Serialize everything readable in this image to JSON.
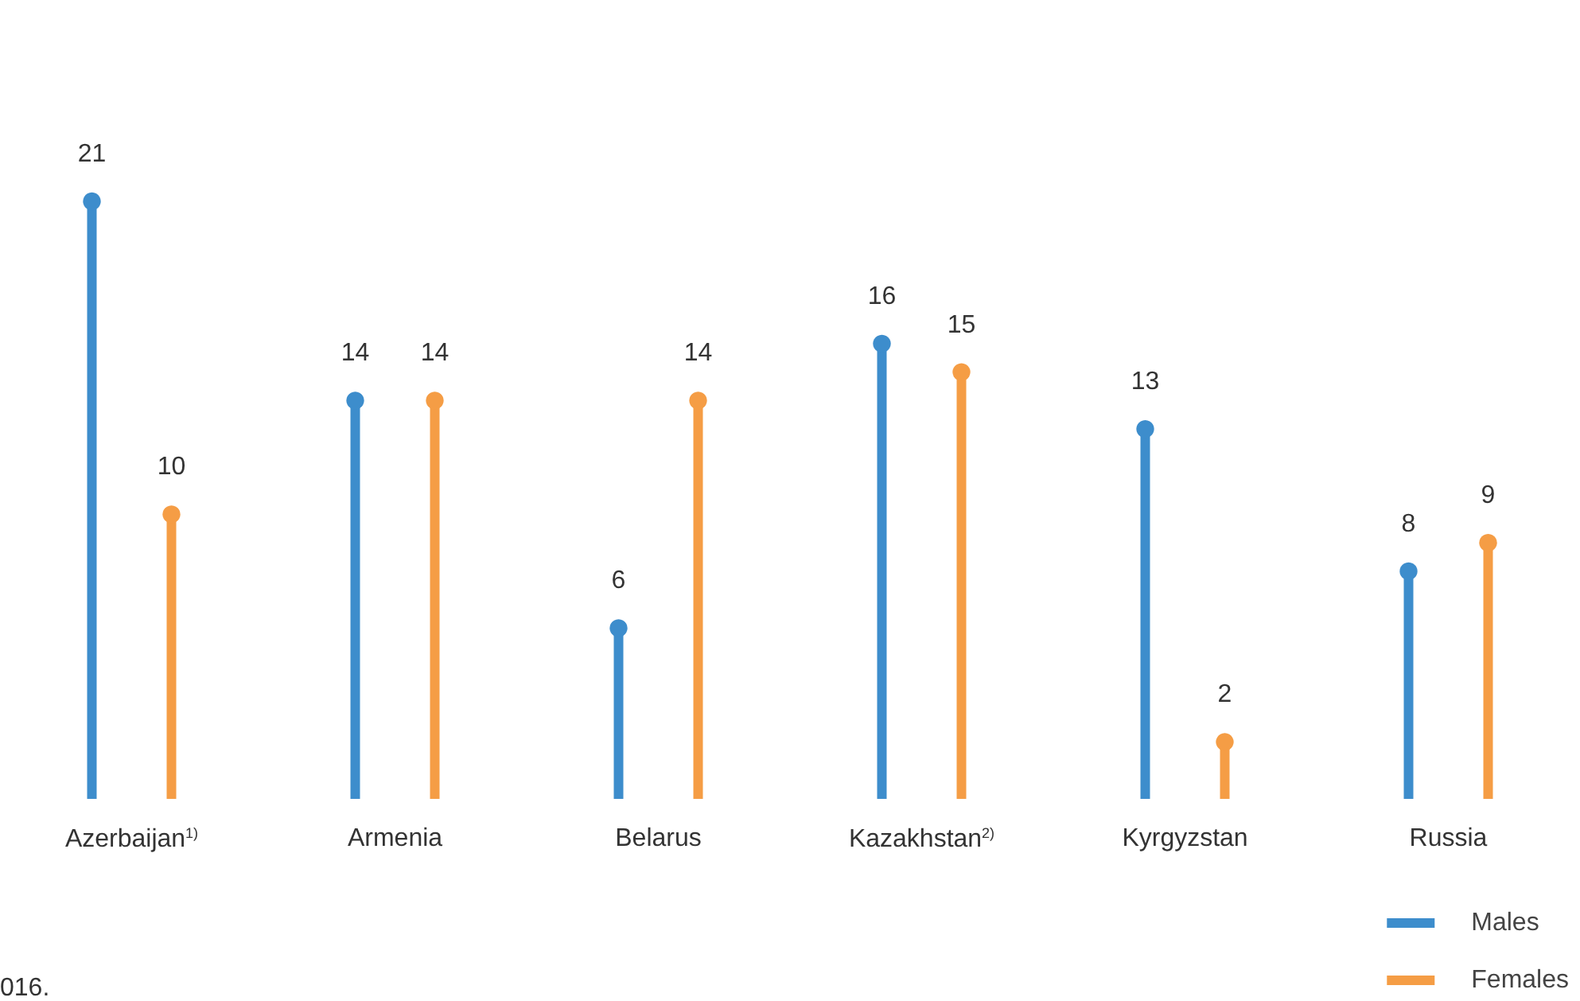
{
  "chart_data": {
    "type": "lollipop",
    "categories": [
      "Azerbaijan$^{1)}$",
      "Armenia",
      "Belarus",
      "Kazakhstan$^{2)}$",
      "Kyrgyzstan",
      "Russia"
    ],
    "series": [
      {
        "name": "Males",
        "color": "#3d8dcc",
        "values": [
          21,
          14,
          6,
          16,
          13,
          8
        ]
      },
      {
        "name": "Females",
        "color": "#f59d45",
        "values": [
          10,
          14,
          14,
          15,
          2,
          9
        ]
      }
    ],
    "data_labels": true,
    "grid": false,
    "legend": "bottom right",
    "marker": "circle",
    "annotations": [
      "016."
    ]
  }
}
